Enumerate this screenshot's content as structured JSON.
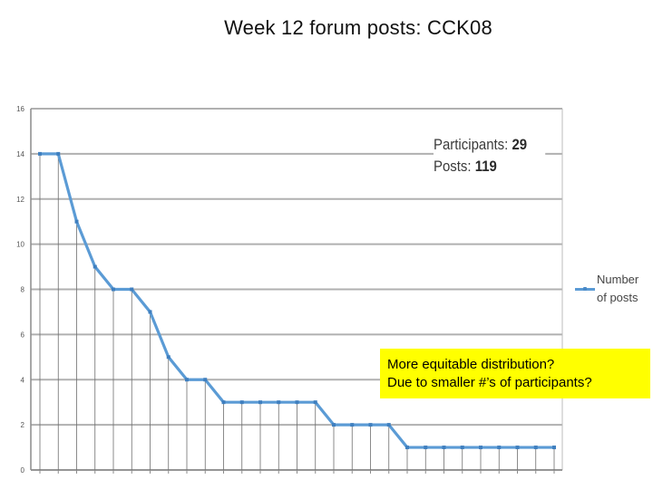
{
  "slide": {
    "title": "Week 12 forum posts: CCK08"
  },
  "stats": {
    "participants_label": "Participants:",
    "participants_value": "29",
    "posts_label": "Posts:",
    "posts_value": "119"
  },
  "callout": {
    "line1": "More equitable distribution?",
    "line2": "Due to smaller #’s of participants?"
  },
  "chart_data": {
    "type": "line",
    "title": "",
    "xlabel": "",
    "ylabel": "",
    "ylim": [
      0,
      16
    ],
    "yticks": [
      "0",
      "2",
      "4",
      "6",
      "8",
      "10",
      "12",
      "14",
      "16"
    ],
    "grid": true,
    "legend_position": "right",
    "series": [
      {
        "name": "Number of posts",
        "color": "#5b9bd5",
        "values": [
          14,
          14,
          11,
          9,
          8,
          8,
          7,
          5,
          4,
          4,
          3,
          3,
          3,
          3,
          3,
          3,
          2,
          2,
          2,
          2,
          1,
          1,
          1,
          1,
          1,
          1,
          1,
          1,
          1
        ]
      }
    ]
  },
  "legend": {
    "line1": "Number",
    "line2": "of posts"
  }
}
